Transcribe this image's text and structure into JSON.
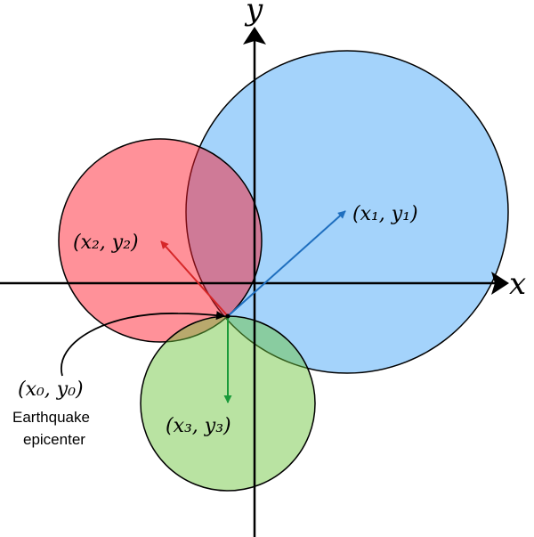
{
  "axes": {
    "x_label": "x",
    "y_label": "y"
  },
  "points": {
    "p0": {
      "label": "(x₀, y₀)",
      "caption_line1": "Earthquake",
      "caption_line2": "epicenter"
    },
    "p1": {
      "label": "(x₁, y₁)",
      "color": "#1f6fbf"
    },
    "p2": {
      "label": "(x₂, y₂)",
      "color": "#d62728"
    },
    "p3": {
      "label": "(x₃, y₃)",
      "color": "#1a9a3a"
    }
  },
  "circles": {
    "blue": {
      "fill": "#5aaff7",
      "opacity": 0.55
    },
    "red": {
      "fill": "#ff1a2a",
      "opacity": 0.5
    },
    "green": {
      "fill": "#6cc53c",
      "opacity": 0.5
    }
  }
}
